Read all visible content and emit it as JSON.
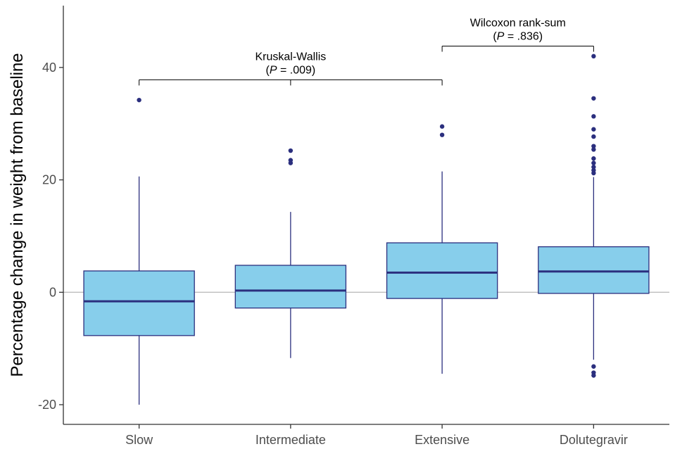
{
  "chart_data": {
    "type": "box",
    "xlabel": "",
    "ylabel": "Percentage change in weight from baseline",
    "ylim": [
      -23.5,
      51
    ],
    "yticks": [
      -20,
      0,
      20,
      40
    ],
    "reference_line": 0,
    "categories": [
      "Slow",
      "Intermediate",
      "Extensive",
      "Dolutegravir"
    ],
    "boxes": [
      {
        "category": "Slow",
        "whisker_low": -20,
        "q1": -7.7,
        "median": -1.6,
        "q3": 3.8,
        "whisker_high": 20.6,
        "outliers": [
          34.2
        ]
      },
      {
        "category": "Intermediate",
        "whisker_low": -11.7,
        "q1": -2.8,
        "median": 0.3,
        "q3": 4.8,
        "whisker_high": 14.3,
        "outliers": [
          25.2,
          23.5,
          23.0
        ]
      },
      {
        "category": "Extensive",
        "whisker_low": -14.5,
        "q1": -1.1,
        "median": 3.5,
        "q3": 8.8,
        "whisker_high": 21.5,
        "outliers": [
          29.5,
          28.0
        ]
      },
      {
        "category": "Dolutegravir",
        "whisker_low": -12.0,
        "q1": -0.2,
        "median": 3.7,
        "q3": 8.1,
        "whisker_high": 20.5,
        "outliers": [
          42.0,
          34.5,
          31.3,
          29.0,
          27.7,
          26.0,
          25.4,
          23.8,
          23.0,
          22.3,
          21.7,
          21.2,
          -13.2,
          -14.3,
          -14.8
        ]
      }
    ],
    "annotations": [
      {
        "line1": "Kruskal-Wallis",
        "p_italic": "P",
        "p_rest": " = .009)",
        "from": "Slow",
        "to": "Extensive",
        "mid": "Intermediate",
        "y": 37.8
      },
      {
        "line1": "Wilcoxon rank-sum",
        "p_italic": "P",
        "p_rest": " = .836)",
        "from": "Extensive",
        "to": "Dolutegravir",
        "y": 43.8
      }
    ],
    "colors": {
      "box_fill": "#87ceeb",
      "box_line": "#2b2f7e",
      "outlier": "#2b2f7e",
      "reference_line": "#bebebe",
      "axis": "#333333"
    }
  }
}
